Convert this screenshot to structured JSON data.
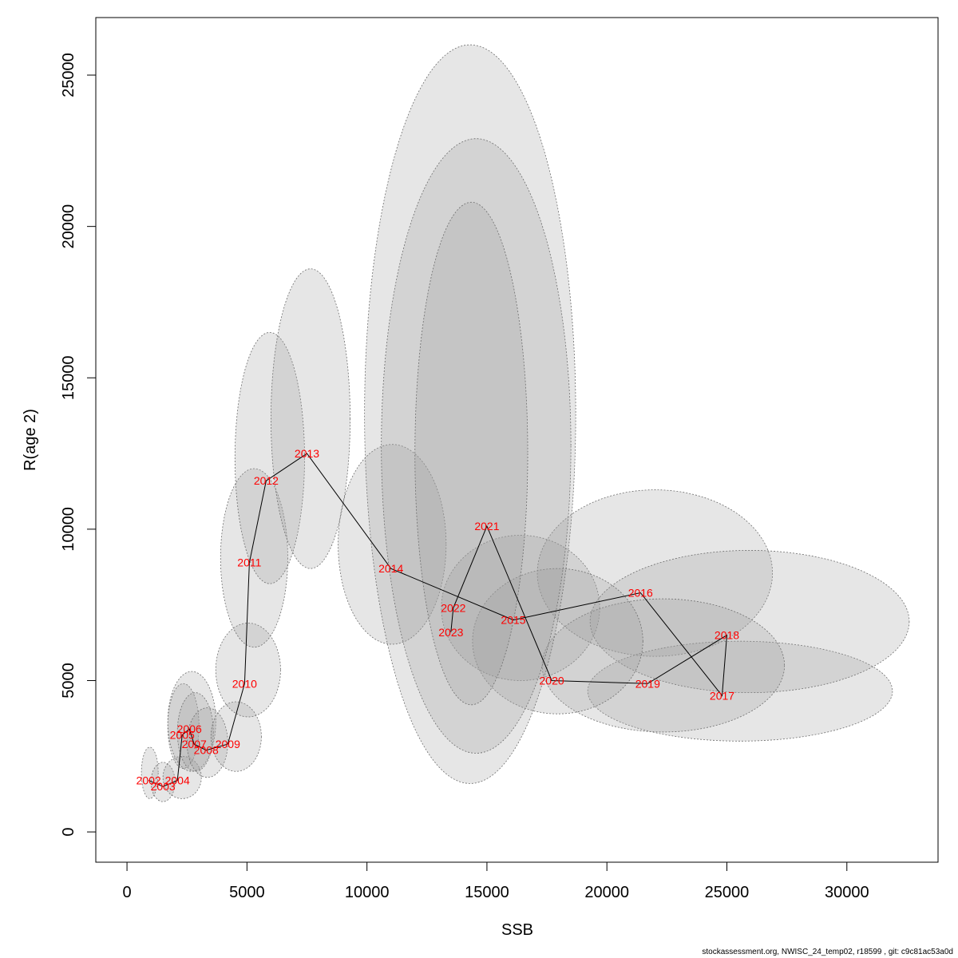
{
  "chart_data": {
    "type": "scatter",
    "xlabel": "SSB",
    "ylabel": "R(age 2)",
    "xlim": [
      -1300,
      33800
    ],
    "ylim": [
      -1000,
      26900
    ],
    "x_ticks": [
      0,
      5000,
      10000,
      15000,
      20000,
      25000,
      30000
    ],
    "y_ticks": [
      0,
      5000,
      10000,
      15000,
      20000,
      25000
    ],
    "grid": false,
    "line_color": "#000000",
    "label_color": "#ff0000",
    "ellipse_fill": "#9a9a9a",
    "points": [
      {
        "year": "2002",
        "x": 900,
        "y": 1700
      },
      {
        "year": "2003",
        "x": 1500,
        "y": 1500
      },
      {
        "year": "2004",
        "x": 2100,
        "y": 1700
      },
      {
        "year": "2005",
        "x": 2300,
        "y": 3200
      },
      {
        "year": "2006",
        "x": 2600,
        "y": 3400
      },
      {
        "year": "2007",
        "x": 2800,
        "y": 2900
      },
      {
        "year": "2008",
        "x": 3300,
        "y": 2700
      },
      {
        "year": "2009",
        "x": 4200,
        "y": 2900
      },
      {
        "year": "2010",
        "x": 4900,
        "y": 4900
      },
      {
        "year": "2011",
        "x": 5100,
        "y": 8900
      },
      {
        "year": "2012",
        "x": 5800,
        "y": 11600
      },
      {
        "year": "2013",
        "x": 7500,
        "y": 12500
      },
      {
        "year": "2014",
        "x": 11000,
        "y": 8700
      },
      {
        "year": "2015",
        "x": 16100,
        "y": 7000
      },
      {
        "year": "2016",
        "x": 21400,
        "y": 7900
      },
      {
        "year": "2017",
        "x": 24800,
        "y": 4500
      },
      {
        "year": "2018",
        "x": 25000,
        "y": 6500
      },
      {
        "year": "2019",
        "x": 21700,
        "y": 4900
      },
      {
        "year": "2020",
        "x": 17700,
        "y": 5000
      },
      {
        "year": "2021",
        "x": 15000,
        "y": 10100
      },
      {
        "year": "2022",
        "x": 13600,
        "y": 7400
      },
      {
        "year": "2023",
        "x": 13500,
        "y": 6600
      }
    ],
    "confidence_ellipses": [
      {
        "year": "2002",
        "x_range": [
          600,
          1300
        ],
        "y_range": [
          1100,
          2800
        ]
      },
      {
        "year": "2003",
        "x_range": [
          1000,
          2000
        ],
        "y_range": [
          1000,
          2300
        ]
      },
      {
        "year": "2004",
        "x_range": [
          1500,
          3100
        ],
        "y_range": [
          1100,
          2500
        ]
      },
      {
        "year": "2005",
        "x_range": [
          1700,
          3000
        ],
        "y_range": [
          2100,
          4900
        ]
      },
      {
        "year": "2006",
        "x_range": [
          1700,
          3700
        ],
        "y_range": [
          2000,
          5300
        ]
      },
      {
        "year": "2007",
        "x_range": [
          2100,
          3600
        ],
        "y_range": [
          2000,
          4600
        ]
      },
      {
        "year": "2008",
        "x_range": [
          2500,
          4200
        ],
        "y_range": [
          1800,
          4100
        ]
      },
      {
        "year": "2009",
        "x_range": [
          3500,
          5600
        ],
        "y_range": [
          2000,
          4300
        ]
      },
      {
        "year": "2010",
        "x_range": [
          3700,
          6400
        ],
        "y_range": [
          3800,
          6900
        ]
      },
      {
        "year": "2011",
        "x_range": [
          3900,
          6700
        ],
        "y_range": [
          6100,
          12000
        ]
      },
      {
        "year": "2012",
        "x_range": [
          4500,
          7400
        ],
        "y_range": [
          8200,
          16500
        ]
      },
      {
        "year": "2013",
        "x_range": [
          6000,
          9300
        ],
        "y_range": [
          8700,
          18600
        ]
      },
      {
        "year": "2014",
        "x_range": [
          8800,
          13300
        ],
        "y_range": [
          6200,
          12800
        ]
      },
      {
        "year": "2015",
        "x_range": [
          13100,
          19700
        ],
        "y_range": [
          5000,
          9800
        ]
      },
      {
        "year": "2016",
        "x_range": [
          17100,
          26900
        ],
        "y_range": [
          5800,
          11300
        ]
      },
      {
        "year": "2017",
        "x_range": [
          19200,
          31900
        ],
        "y_range": [
          3000,
          6300
        ]
      },
      {
        "year": "2018",
        "x_range": [
          19300,
          32600
        ],
        "y_range": [
          4600,
          9300
        ]
      },
      {
        "year": "2019",
        "x_range": [
          17300,
          27400
        ],
        "y_range": [
          3300,
          7700
        ]
      },
      {
        "year": "2020",
        "x_range": [
          14400,
          21500
        ],
        "y_range": [
          3900,
          8700
        ]
      },
      {
        "year": "2021",
        "x_range": [
          9900,
          18700
        ],
        "y_range": [
          1600,
          26000
        ]
      },
      {
        "year": "2022",
        "x_range": [
          10600,
          18500
        ],
        "y_range": [
          2600,
          22900
        ]
      },
      {
        "year": "2023",
        "x_range": [
          12000,
          16700
        ],
        "y_range": [
          4200,
          20800
        ]
      }
    ]
  },
  "footer": "stockassessment.org, NWISC_24_temp02, r18599 , git: c9c81ac53a0d"
}
